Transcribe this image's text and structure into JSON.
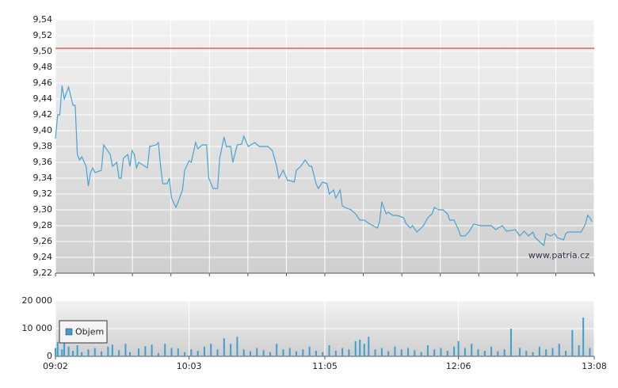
{
  "chart_data": [
    {
      "type": "line",
      "xlim": [
        542,
        788
      ],
      "ylim": [
        9.22,
        9.54
      ],
      "yticks": [
        {
          "value": 9.22,
          "label": "9,22"
        },
        {
          "value": 9.24,
          "label": "9,24"
        },
        {
          "value": 9.26,
          "label": "9,26"
        },
        {
          "value": 9.28,
          "label": "9,28"
        },
        {
          "value": 9.3,
          "label": "9,30"
        },
        {
          "value": 9.32,
          "label": "9,32"
        },
        {
          "value": 9.34,
          "label": "9,34"
        },
        {
          "value": 9.36,
          "label": "9,36"
        },
        {
          "value": 9.38,
          "label": "9,38"
        },
        {
          "value": 9.4,
          "label": "9,40"
        },
        {
          "value": 9.42,
          "label": "9,42"
        },
        {
          "value": 9.44,
          "label": "9,44"
        },
        {
          "value": 9.46,
          "label": "9,46"
        },
        {
          "value": 9.48,
          "label": "9,48"
        },
        {
          "value": 9.5,
          "label": "9,50"
        },
        {
          "value": 9.52,
          "label": "9,52"
        },
        {
          "value": 9.54,
          "label": "9,54"
        }
      ],
      "grid": true,
      "color": "#4aa3d0",
      "reference_line": {
        "value": 9.504,
        "color": "#cc2222"
      },
      "watermark": "www.patria.cz",
      "x": [
        542,
        543,
        544,
        545,
        546,
        548,
        550,
        551,
        552,
        553,
        554,
        556,
        557,
        558,
        559,
        560,
        563,
        564,
        567,
        568,
        570,
        571,
        572,
        573,
        575,
        576,
        577,
        578,
        579,
        580,
        584,
        585,
        588,
        589,
        590,
        591,
        593,
        594,
        595,
        597,
        598,
        600,
        601,
        603,
        604,
        606,
        607,
        609,
        611,
        612,
        614,
        616,
        617,
        619,
        620,
        622,
        623,
        625,
        627,
        628,
        630,
        633,
        635,
        639,
        641,
        643,
        644,
        646,
        648,
        649,
        651,
        652,
        654,
        656,
        658,
        659,
        661,
        662,
        664,
        666,
        667,
        669,
        670,
        672,
        673,
        675,
        677,
        679,
        681,
        683,
        685,
        687,
        689,
        690,
        691,
        693,
        694,
        696,
        698,
        701,
        702,
        704,
        705,
        707,
        709,
        710,
        712,
        714,
        715,
        717,
        719,
        721,
        722,
        724,
        726,
        727,
        729,
        731,
        733,
        736,
        741,
        743,
        746,
        748,
        752,
        754,
        756,
        758,
        760,
        761,
        763,
        765,
        766,
        768,
        770,
        771,
        774,
        775,
        776,
        782,
        784,
        785,
        786,
        787
      ],
      "values": [
        9.39,
        9.42,
        9.42,
        9.457,
        9.44,
        9.455,
        9.432,
        9.432,
        9.37,
        9.363,
        9.367,
        9.355,
        9.33,
        9.347,
        9.353,
        9.347,
        9.35,
        9.382,
        9.37,
        9.355,
        9.36,
        9.34,
        9.34,
        9.365,
        9.37,
        9.355,
        9.375,
        9.37,
        9.353,
        9.36,
        9.353,
        9.38,
        9.382,
        9.385,
        9.355,
        9.333,
        9.333,
        9.34,
        9.315,
        9.303,
        9.31,
        9.325,
        9.35,
        9.362,
        9.36,
        9.385,
        9.377,
        9.382,
        9.382,
        9.34,
        9.327,
        9.327,
        9.365,
        9.392,
        9.38,
        9.38,
        9.36,
        9.382,
        9.383,
        9.393,
        9.38,
        9.385,
        9.38,
        9.38,
        9.375,
        9.355,
        9.34,
        9.35,
        9.337,
        9.337,
        9.335,
        9.35,
        9.355,
        9.363,
        9.355,
        9.355,
        9.333,
        9.327,
        9.335,
        9.333,
        9.32,
        9.325,
        9.315,
        9.325,
        9.305,
        9.302,
        9.3,
        9.295,
        9.287,
        9.287,
        9.283,
        9.28,
        9.277,
        9.285,
        9.31,
        9.295,
        9.297,
        9.293,
        9.293,
        9.29,
        9.283,
        9.277,
        9.28,
        9.272,
        9.277,
        9.28,
        9.29,
        9.295,
        9.303,
        9.3,
        9.3,
        9.295,
        9.287,
        9.287,
        9.275,
        9.267,
        9.267,
        9.273,
        9.282,
        9.28,
        9.28,
        9.275,
        9.28,
        9.273,
        9.275,
        9.267,
        9.273,
        9.267,
        9.272,
        9.265,
        9.26,
        9.255,
        9.27,
        9.267,
        9.27,
        9.265,
        9.262,
        9.27,
        9.272,
        9.272,
        9.282,
        9.293,
        9.29,
        9.285
      ]
    },
    {
      "type": "bar",
      "xlim": [
        542,
        788
      ],
      "xticks": [
        {
          "value": 542,
          "label": "09:02"
        },
        {
          "value": 603,
          "label": "10:03"
        },
        {
          "value": 665,
          "label": "11:05"
        },
        {
          "value": 726,
          "label": "12:06"
        },
        {
          "value": 788,
          "label": "13:08"
        }
      ],
      "ylim": [
        0,
        20000
      ],
      "yticks": [
        0,
        {
          "value": 10000,
          "label": "10 000"
        },
        {
          "value": 20000,
          "label": "20 000"
        }
      ],
      "grid": true,
      "legend": "upper left",
      "x": [
        542,
        543,
        545,
        546,
        548,
        550,
        552,
        554,
        557,
        560,
        563,
        566,
        568,
        571,
        574,
        576,
        580,
        583,
        586,
        589,
        592,
        595,
        598,
        601,
        604,
        607,
        610,
        613,
        616,
        619,
        622,
        625,
        628,
        631,
        634,
        637,
        640,
        643,
        646,
        649,
        652,
        655,
        658,
        661,
        664,
        667,
        670,
        673,
        676,
        679,
        681,
        683,
        685,
        688,
        691,
        694,
        697,
        700,
        703,
        706,
        709,
        712,
        715,
        718,
        721,
        724,
        726,
        729,
        732,
        735,
        738,
        741,
        744,
        747,
        750,
        754,
        757,
        760,
        763,
        766,
        769,
        772,
        775,
        778,
        781,
        783,
        786
      ],
      "series": [
        {
          "name": "Objem",
          "color": "#3d9fd0",
          "values": [
            3000,
            5200,
            2500,
            4800,
            3500,
            2000,
            4000,
            1500,
            2500,
            3000,
            1800,
            3500,
            4200,
            2200,
            4500,
            1500,
            2800,
            3600,
            4200,
            1200,
            4500,
            3000,
            2800,
            1500,
            2500,
            2000,
            3500,
            4500,
            2500,
            6500,
            4500,
            7000,
            2500,
            1800,
            3000,
            2200,
            1500,
            4500,
            2500,
            3000,
            1800,
            2500,
            3500,
            2000,
            1500,
            4000,
            2000,
            3000,
            2500,
            5500,
            6000,
            4500,
            7000,
            2500,
            3000,
            1800,
            3500,
            2500,
            3000,
            2200,
            1500,
            4000,
            2500,
            3000,
            2000,
            3500,
            5500,
            3000,
            4500,
            2500,
            2000,
            3500,
            1800,
            2500,
            10000,
            3000,
            2000,
            1500,
            3500,
            2500,
            3000,
            4500,
            2000,
            9500,
            4000,
            14000,
            3000
          ]
        }
      ]
    }
  ]
}
